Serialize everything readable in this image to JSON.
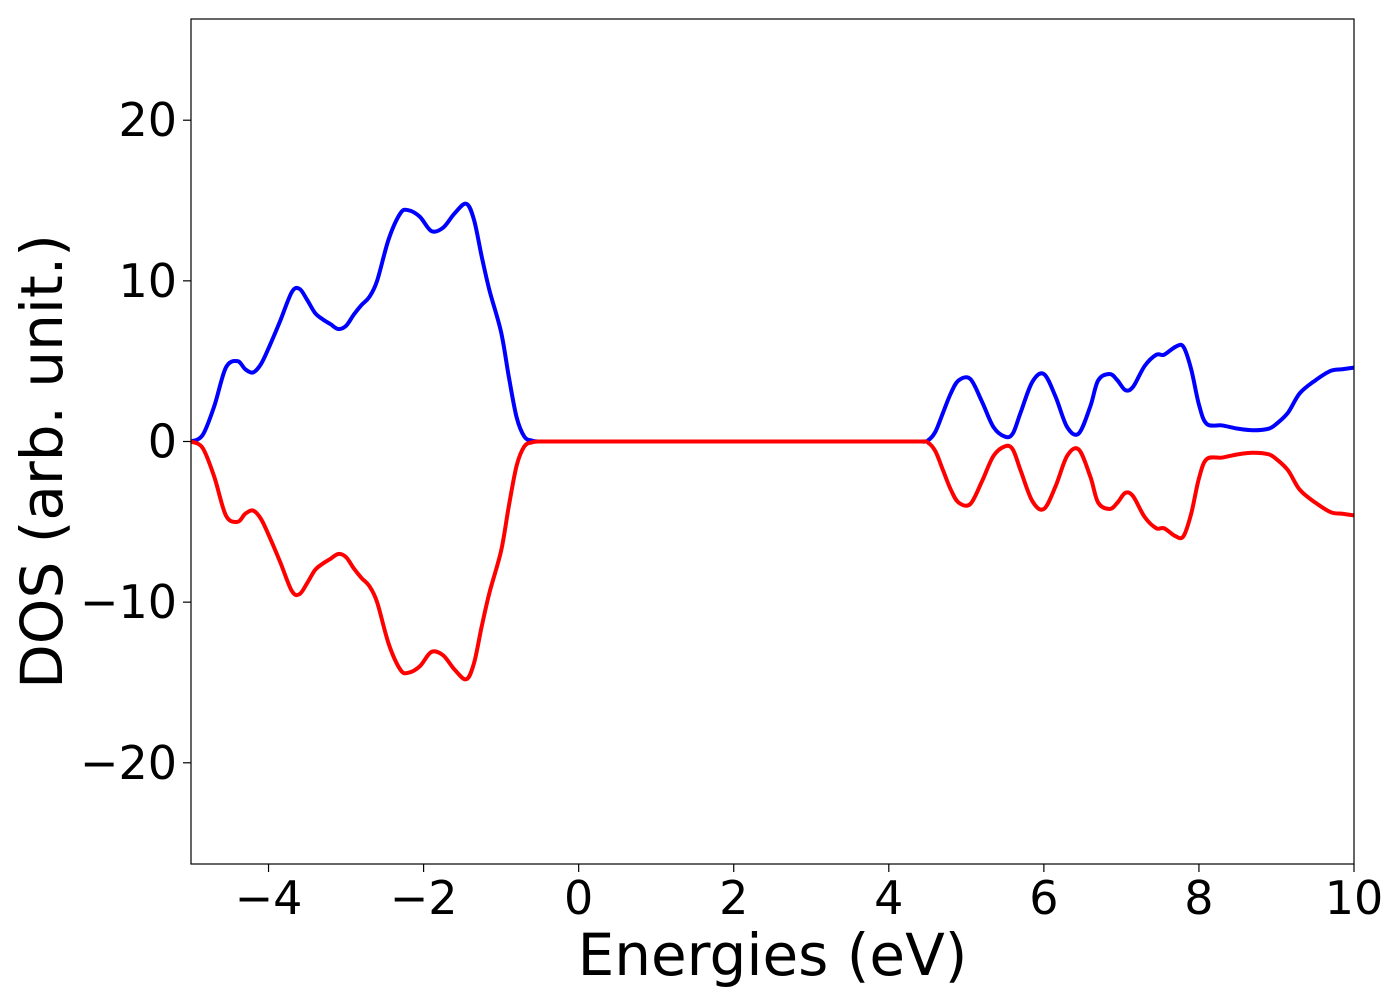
{
  "chart_data": {
    "type": "line",
    "title": "",
    "xlabel": "Energies (eV)",
    "ylabel": "DOS (arb. unit.)",
    "xlim": [
      -5,
      10
    ],
    "ylim": [
      -26.3,
      26.3
    ],
    "xticks": [
      -4,
      -2,
      0,
      2,
      4,
      6,
      8,
      10
    ],
    "xtick_labels": [
      "−4",
      "−2",
      "0",
      "2",
      "4",
      "6",
      "8",
      "10"
    ],
    "yticks": [
      -20,
      -10,
      0,
      10,
      20
    ],
    "ytick_labels": [
      "−20",
      "−10",
      "0",
      "10",
      "20"
    ],
    "grid": false,
    "legend": "none",
    "series": [
      {
        "color": "#0000ff",
        "x": [
          -5.0,
          -4.85,
          -4.7,
          -4.55,
          -4.4,
          -4.3,
          -4.2,
          -4.1,
          -4.0,
          -3.85,
          -3.7,
          -3.6,
          -3.5,
          -3.4,
          -3.3,
          -3.2,
          -3.1,
          -3.0,
          -2.9,
          -2.8,
          -2.7,
          -2.6,
          -2.45,
          -2.3,
          -2.2,
          -2.05,
          -1.9,
          -1.75,
          -1.6,
          -1.45,
          -1.35,
          -1.25,
          -1.15,
          -1.0,
          -0.9,
          -0.8,
          -0.7,
          -0.6,
          -0.5,
          -0.3,
          0.0,
          2.0,
          4.0,
          4.4,
          4.5,
          4.6,
          4.7,
          4.8,
          4.9,
          5.05,
          5.2,
          5.35,
          5.5,
          5.6,
          5.7,
          5.85,
          6.0,
          6.15,
          6.3,
          6.45,
          6.6,
          6.7,
          6.85,
          6.95,
          7.05,
          7.15,
          7.3,
          7.45,
          7.55,
          7.7,
          7.8,
          7.9,
          8.0,
          8.1,
          8.3,
          8.5,
          8.7,
          8.9,
          9.0,
          9.15,
          9.3,
          9.5,
          9.7,
          9.85,
          10.0
        ],
        "y": [
          0.0,
          0.4,
          2.2,
          4.6,
          5.0,
          4.5,
          4.3,
          4.8,
          5.8,
          7.5,
          9.3,
          9.5,
          8.8,
          8.0,
          7.6,
          7.3,
          7.0,
          7.2,
          7.9,
          8.5,
          9.0,
          10.0,
          12.6,
          14.2,
          14.4,
          14.0,
          13.1,
          13.3,
          14.2,
          14.8,
          13.8,
          11.5,
          9.4,
          6.8,
          4.0,
          1.5,
          0.3,
          0.05,
          0.0,
          0.0,
          0.0,
          0.0,
          0.0,
          0.0,
          0.05,
          0.6,
          1.8,
          3.0,
          3.8,
          3.9,
          2.5,
          0.9,
          0.3,
          0.5,
          1.8,
          3.7,
          4.2,
          2.8,
          0.9,
          0.5,
          2.2,
          3.8,
          4.2,
          3.8,
          3.2,
          3.4,
          4.7,
          5.4,
          5.4,
          5.9,
          5.9,
          4.5,
          2.3,
          1.1,
          1.0,
          0.8,
          0.7,
          0.8,
          1.1,
          1.8,
          3.0,
          3.8,
          4.4,
          4.5,
          4.6
        ]
      },
      {
        "color": "#ff0000",
        "x": [
          -5.0,
          -4.85,
          -4.7,
          -4.55,
          -4.4,
          -4.3,
          -4.2,
          -4.1,
          -4.0,
          -3.85,
          -3.7,
          -3.6,
          -3.5,
          -3.4,
          -3.3,
          -3.2,
          -3.1,
          -3.0,
          -2.9,
          -2.8,
          -2.7,
          -2.6,
          -2.45,
          -2.3,
          -2.2,
          -2.05,
          -1.9,
          -1.75,
          -1.6,
          -1.45,
          -1.35,
          -1.25,
          -1.15,
          -1.0,
          -0.9,
          -0.8,
          -0.7,
          -0.6,
          -0.5,
          -0.3,
          0.0,
          2.0,
          4.0,
          4.4,
          4.5,
          4.6,
          4.7,
          4.8,
          4.9,
          5.05,
          5.2,
          5.35,
          5.5,
          5.6,
          5.7,
          5.85,
          6.0,
          6.15,
          6.3,
          6.45,
          6.6,
          6.7,
          6.85,
          6.95,
          7.05,
          7.15,
          7.3,
          7.45,
          7.55,
          7.7,
          7.8,
          7.9,
          8.0,
          8.1,
          8.3,
          8.5,
          8.7,
          8.9,
          9.0,
          9.15,
          9.3,
          9.5,
          9.7,
          9.85,
          10.0
        ],
        "y": [
          0.0,
          -0.4,
          -2.2,
          -4.6,
          -5.0,
          -4.5,
          -4.3,
          -4.8,
          -5.8,
          -7.5,
          -9.3,
          -9.5,
          -8.8,
          -8.0,
          -7.6,
          -7.3,
          -7.0,
          -7.2,
          -7.9,
          -8.5,
          -9.0,
          -10.0,
          -12.6,
          -14.2,
          -14.4,
          -14.0,
          -13.1,
          -13.3,
          -14.2,
          -14.8,
          -13.8,
          -11.5,
          -9.4,
          -6.8,
          -4.0,
          -1.5,
          -0.3,
          -0.05,
          0.0,
          0.0,
          0.0,
          0.0,
          0.0,
          0.0,
          -0.05,
          -0.6,
          -1.8,
          -3.0,
          -3.8,
          -3.9,
          -2.5,
          -0.9,
          -0.3,
          -0.5,
          -1.8,
          -3.7,
          -4.2,
          -2.8,
          -0.9,
          -0.5,
          -2.2,
          -3.8,
          -4.2,
          -3.8,
          -3.2,
          -3.4,
          -4.7,
          -5.4,
          -5.4,
          -5.9,
          -5.9,
          -4.5,
          -2.3,
          -1.1,
          -1.0,
          -0.8,
          -0.7,
          -0.8,
          -1.1,
          -1.8,
          -3.0,
          -3.8,
          -4.4,
          -4.5,
          -4.6
        ]
      }
    ]
  }
}
